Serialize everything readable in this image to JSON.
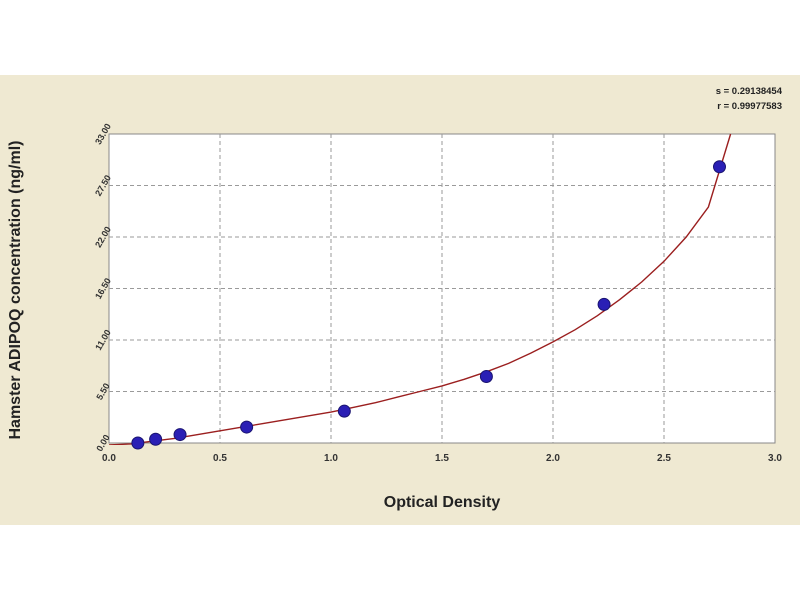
{
  "stats": {
    "s_line": "s = 0.29138454",
    "r_line": "r = 0.99977583"
  },
  "chart_data": {
    "type": "scatter",
    "title": "",
    "xlabel": "Optical Density",
    "ylabel": "Hamster ADIPOQ concentration (ng/ml)",
    "xlim": [
      0.0,
      3.0
    ],
    "ylim": [
      0.0,
      33.0
    ],
    "xticks": [
      "0.0",
      "0.5",
      "1.0",
      "1.5",
      "2.0",
      "2.5",
      "3.0"
    ],
    "yticks": [
      "0.00",
      "5.50",
      "11.00",
      "16.50",
      "22.00",
      "27.50",
      "33.00"
    ],
    "grid": true,
    "series": [
      {
        "points": [
          {
            "x": 0.13,
            "y": 0.0
          },
          {
            "x": 0.21,
            "y": 0.4
          },
          {
            "x": 0.32,
            "y": 0.9
          },
          {
            "x": 0.62,
            "y": 1.7
          },
          {
            "x": 1.06,
            "y": 3.4
          },
          {
            "x": 1.7,
            "y": 7.1
          },
          {
            "x": 2.23,
            "y": 14.8
          },
          {
            "x": 2.75,
            "y": 29.5
          }
        ],
        "color": "#2a1fb5"
      }
    ],
    "fit_curve": {
      "color": "#9b1f1f",
      "x": [
        0.0,
        0.1,
        0.2,
        0.3,
        0.4,
        0.5,
        0.6,
        0.7,
        0.8,
        0.9,
        1.0,
        1.1,
        1.2,
        1.3,
        1.4,
        1.5,
        1.6,
        1.7,
        1.8,
        1.9,
        2.0,
        2.1,
        2.2,
        2.3,
        2.4,
        2.5,
        2.6,
        2.7,
        2.8
      ],
      "y": [
        -0.4,
        -0.1,
        0.2,
        0.5,
        0.9,
        1.3,
        1.7,
        2.1,
        2.5,
        2.9,
        3.3,
        3.8,
        4.3,
        4.9,
        5.5,
        6.1,
        6.8,
        7.6,
        8.5,
        9.6,
        10.8,
        12.1,
        13.6,
        15.3,
        17.2,
        19.4,
        22.0,
        25.2,
        33.0
      ]
    }
  }
}
